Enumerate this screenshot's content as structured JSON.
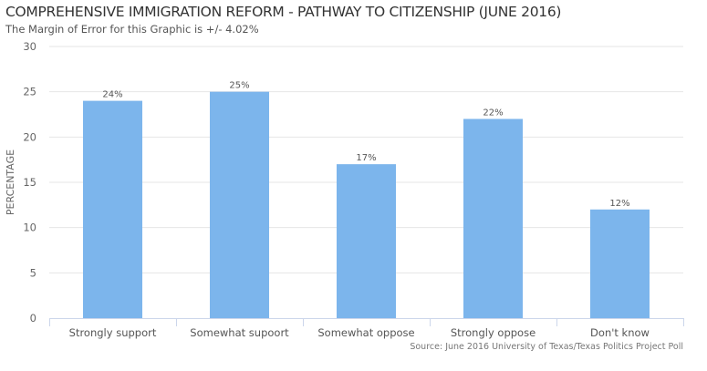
{
  "chart_data": {
    "type": "bar",
    "title": "COMPREHENSIVE IMMIGRATION REFORM - PATHWAY TO CITIZENSHIP (JUNE 2016)",
    "subtitle": "The Margin of Error for this Graphic is +/- 4.02%",
    "source": "Source: June 2016 University of Texas/Texas Politics Project Poll",
    "xlabel": "",
    "ylabel": "PERCENTAGE",
    "ylim": [
      0,
      30
    ],
    "yticks": [
      0,
      5,
      10,
      15,
      20,
      25,
      30
    ],
    "grid": true,
    "categories": [
      "Strongly support",
      "Somewhat supoort",
      "Somewhat oppose",
      "Strongly oppose",
      "Don't know"
    ],
    "values": [
      24,
      25,
      17,
      22,
      12
    ],
    "data_labels": [
      "24%",
      "25%",
      "17%",
      "22%",
      "12%"
    ],
    "colors": {
      "bar": "#7cb5ec",
      "grid": "#e6e6e6",
      "axis": "#ccd6eb"
    }
  }
}
